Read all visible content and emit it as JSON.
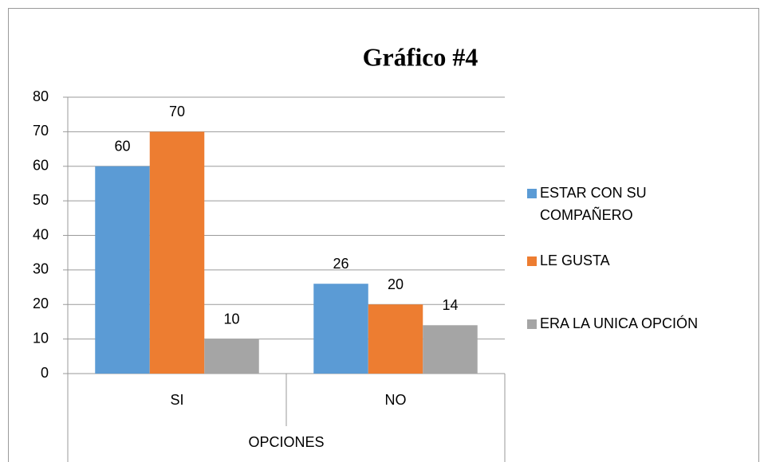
{
  "chart_data": {
    "type": "bar",
    "title": "Gráfico #4",
    "xlabel": "OPCIONES",
    "categories": [
      "SI",
      "NO"
    ],
    "series": [
      {
        "name": "ESTAR CON SU COMPAÑERO",
        "color": "#5b9bd5",
        "values": [
          60,
          26
        ]
      },
      {
        "name": "LE GUSTA",
        "color": "#ed7d31",
        "values": [
          70,
          20
        ]
      },
      {
        "name": "ERA LA UNICA OPCIÓN",
        "color": "#a5a5a5",
        "values": [
          10,
          14
        ]
      }
    ],
    "ylim": [
      0,
      80
    ],
    "yticks": [
      0,
      10,
      20,
      30,
      40,
      50,
      60,
      70,
      80
    ],
    "grid": true,
    "legend": "right"
  }
}
